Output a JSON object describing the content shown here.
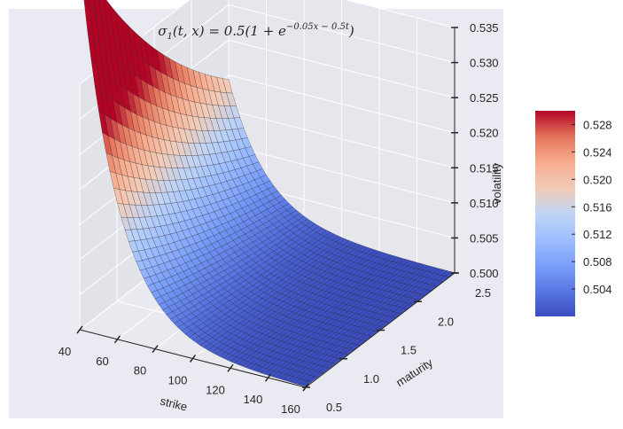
{
  "chart_data": {
    "type": "surface",
    "title_parts": {
      "lhs": "σ",
      "lhs_sub": "1",
      "lhs_args": "(t, x) = 0.5(1 + e",
      "exponent": "−0.05x − 0.5t",
      "rhs_close": ")"
    },
    "xlabel": "strike",
    "ylabel": "maturity",
    "zlabel": "volatility",
    "x_ticks": [
      "40",
      "60",
      "80",
      "100",
      "120",
      "140",
      "160"
    ],
    "y_ticks": [
      "0.5",
      "1.0",
      "1.5",
      "2.0",
      "2.5"
    ],
    "z_ticks": [
      "0.500",
      "0.505",
      "0.510",
      "0.515",
      "0.520",
      "0.525",
      "0.530",
      "0.535"
    ],
    "xlim": [
      40,
      160
    ],
    "ylim": [
      0.5,
      2.5
    ],
    "zlim": [
      0.5,
      0.535
    ],
    "formula": {
      "a": 0.5,
      "kx": 0.05,
      "kt": 0.5
    },
    "colorbar": {
      "ticks": [
        "0.504",
        "0.508",
        "0.512",
        "0.516",
        "0.520",
        "0.524",
        "0.528"
      ],
      "range": [
        0.5,
        0.53
      ],
      "colormap": "coolwarm"
    },
    "grid": true,
    "background": "#eaeaf2"
  }
}
